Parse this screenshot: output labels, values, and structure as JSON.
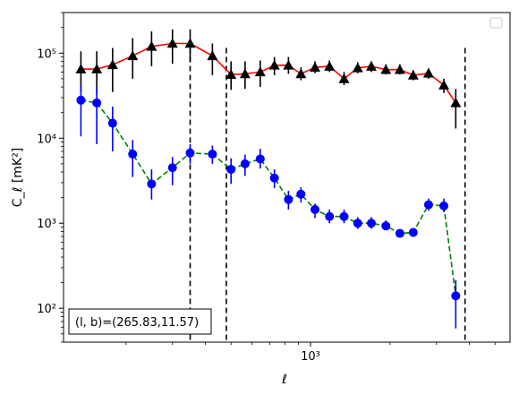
{
  "chart_data": {
    "type": "line",
    "xscale": "log",
    "yscale": "log",
    "xlim": [
      116,
      5700
    ],
    "ylim": [
      40,
      300000
    ],
    "xlabel": "ℓ",
    "ylabel": "C_ℓ [mK²]",
    "xtick_labels": [
      {
        "value": 1000,
        "label": "10³"
      }
    ],
    "ytick_labels": [
      {
        "value": 100,
        "label": "10²"
      },
      {
        "value": 1000,
        "label": "10³"
      },
      {
        "value": 10000,
        "label": "10⁴"
      },
      {
        "value": 100000,
        "label": "10⁵"
      }
    ],
    "vlines": [
      350,
      480,
      3850
    ],
    "annotation": "(l, b)=(265.83,11.57)",
    "legend": {
      "placement": "top-right",
      "entries": []
    },
    "colors": {
      "series_1": "#ff0000",
      "series_2": "#008000",
      "series_1_markers": "#000000",
      "series_2_markers": "#0000ff"
    },
    "series": [
      {
        "line_color": "#ff0000",
        "line_style": "solid",
        "marker": "triangle",
        "marker_color": "#000000",
        "points": [
          {
            "x": 135,
            "y": 65000,
            "ylo": 35000,
            "yhi": 105000
          },
          {
            "x": 155,
            "y": 65000,
            "ylo": 33000,
            "yhi": 105000
          },
          {
            "x": 178,
            "y": 73000,
            "ylo": 35000,
            "yhi": 115000
          },
          {
            "x": 212,
            "y": 93000,
            "ylo": 50000,
            "yhi": 150000
          },
          {
            "x": 250,
            "y": 120000,
            "ylo": 70000,
            "yhi": 180000
          },
          {
            "x": 300,
            "y": 130000,
            "ylo": 75000,
            "yhi": 190000
          },
          {
            "x": 350,
            "y": 130000,
            "ylo": 78000,
            "yhi": 190000
          },
          {
            "x": 425,
            "y": 93000,
            "ylo": 55000,
            "yhi": 130000
          },
          {
            "x": 500,
            "y": 56000,
            "ylo": 37000,
            "yhi": 80000
          },
          {
            "x": 565,
            "y": 57000,
            "ylo": 38000,
            "yhi": 80000
          },
          {
            "x": 645,
            "y": 60000,
            "ylo": 40000,
            "yhi": 82000
          },
          {
            "x": 730,
            "y": 72000,
            "ylo": 55000,
            "yhi": 90000
          },
          {
            "x": 825,
            "y": 72000,
            "ylo": 57000,
            "yhi": 90000
          },
          {
            "x": 920,
            "y": 57000,
            "ylo": 48000,
            "yhi": 68000
          },
          {
            "x": 1040,
            "y": 68000,
            "ylo": 58000,
            "yhi": 80000
          },
          {
            "x": 1180,
            "y": 70000,
            "ylo": 60000,
            "yhi": 82000
          },
          {
            "x": 1340,
            "y": 50000,
            "ylo": 42000,
            "yhi": 60000
          },
          {
            "x": 1510,
            "y": 67000,
            "ylo": 58000,
            "yhi": 78000
          },
          {
            "x": 1700,
            "y": 70000,
            "ylo": 60000,
            "yhi": 80000
          },
          {
            "x": 1930,
            "y": 64000,
            "ylo": 56000,
            "yhi": 74000
          },
          {
            "x": 2180,
            "y": 64000,
            "ylo": 56000,
            "yhi": 74000
          },
          {
            "x": 2450,
            "y": 55000,
            "ylo": 48000,
            "yhi": 63000
          },
          {
            "x": 2800,
            "y": 58000,
            "ylo": 50000,
            "yhi": 66000
          },
          {
            "x": 3200,
            "y": 42000,
            "ylo": 34000,
            "yhi": 50000
          },
          {
            "x": 3550,
            "y": 26000,
            "ylo": 13000,
            "yhi": 38000
          }
        ]
      },
      {
        "line_color": "#008000",
        "line_style": "dashed",
        "marker": "circle",
        "marker_color": "#0000ff",
        "points": [
          {
            "x": 135,
            "y": 28000,
            "ylo": 10500,
            "yhi": 42000
          },
          {
            "x": 155,
            "y": 26000,
            "ylo": 8500,
            "yhi": 40000
          },
          {
            "x": 178,
            "y": 15000,
            "ylo": 7000,
            "yhi": 23500
          },
          {
            "x": 212,
            "y": 6500,
            "ylo": 3500,
            "yhi": 9500
          },
          {
            "x": 250,
            "y": 2900,
            "ylo": 1900,
            "yhi": 4300
          },
          {
            "x": 300,
            "y": 4500,
            "ylo": 2800,
            "yhi": 6000
          },
          {
            "x": 350,
            "y": 6700,
            "ylo": 5000,
            "yhi": 8500
          },
          {
            "x": 425,
            "y": 6500,
            "ylo": 5000,
            "yhi": 8200
          },
          {
            "x": 500,
            "y": 4300,
            "ylo": 2900,
            "yhi": 5800
          },
          {
            "x": 565,
            "y": 5000,
            "ylo": 3600,
            "yhi": 6400
          },
          {
            "x": 645,
            "y": 5700,
            "ylo": 4400,
            "yhi": 7500
          },
          {
            "x": 730,
            "y": 3400,
            "ylo": 2600,
            "yhi": 4300
          },
          {
            "x": 825,
            "y": 1900,
            "ylo": 1450,
            "yhi": 2400
          },
          {
            "x": 920,
            "y": 2200,
            "ylo": 1750,
            "yhi": 2650
          },
          {
            "x": 1040,
            "y": 1450,
            "ylo": 1150,
            "yhi": 1700
          },
          {
            "x": 1180,
            "y": 1200,
            "ylo": 1000,
            "yhi": 1450
          },
          {
            "x": 1340,
            "y": 1200,
            "ylo": 1000,
            "yhi": 1450
          },
          {
            "x": 1510,
            "y": 1000,
            "ylo": 860,
            "yhi": 1180
          },
          {
            "x": 1700,
            "y": 1000,
            "ylo": 860,
            "yhi": 1180
          },
          {
            "x": 1930,
            "y": 930,
            "ylo": 830,
            "yhi": 1080
          },
          {
            "x": 2180,
            "y": 760,
            "ylo": 700,
            "yhi": 830
          },
          {
            "x": 2450,
            "y": 780,
            "ylo": 720,
            "yhi": 860
          },
          {
            "x": 2800,
            "y": 1650,
            "ylo": 1400,
            "yhi": 1950
          },
          {
            "x": 3200,
            "y": 1600,
            "ylo": 1350,
            "yhi": 1950
          },
          {
            "x": 3550,
            "y": 140,
            "ylo": 58,
            "yhi": 215
          }
        ]
      }
    ]
  }
}
